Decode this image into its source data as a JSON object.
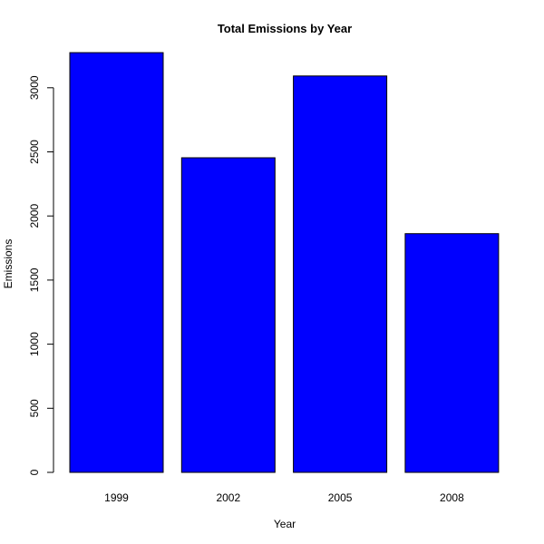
{
  "chart_data": {
    "type": "bar",
    "title": "Total Emissions by Year",
    "xlabel": "Year",
    "ylabel": "Emissions",
    "categories": [
      "1999",
      "2002",
      "2005",
      "2008"
    ],
    "values": [
      3274,
      2454,
      3092,
      1862
    ],
    "ylim": [
      0,
      3274
    ],
    "yticks": [
      0,
      500,
      1000,
      1500,
      2000,
      2500,
      3000
    ],
    "bar_color": "#0000FF",
    "grid": false,
    "legend": "none"
  }
}
